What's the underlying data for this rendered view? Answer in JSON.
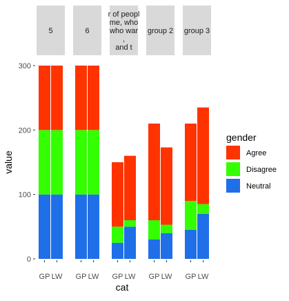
{
  "chart_data": {
    "type": "bar",
    "stacked": true,
    "faceted": true,
    "xlabel": "cat",
    "ylabel": "value",
    "ylim": [
      0,
      300
    ],
    "yticks": [
      0,
      100,
      200,
      300
    ],
    "categories": [
      "GP",
      "LW"
    ],
    "legend": {
      "title": "gender",
      "position": "right",
      "entries": [
        {
          "name": "Agree",
          "color": "#ff3300"
        },
        {
          "name": "Disagree",
          "color": "#33ff00"
        },
        {
          "name": "Neutral",
          "color": "#1f6fe8"
        }
      ]
    },
    "stack_order_bottom_to_top": [
      "Neutral",
      "Disagree",
      "Agree"
    ],
    "panels": [
      {
        "strip": [
          "5"
        ],
        "bars": [
          {
            "cat": "GP",
            "Neutral": 100,
            "Disagree": 100,
            "Agree": 100
          },
          {
            "cat": "LW",
            "Neutral": 100,
            "Disagree": 100,
            "Agree": 100
          }
        ]
      },
      {
        "strip": [
          "6"
        ],
        "bars": [
          {
            "cat": "GP",
            "Neutral": 100,
            "Disagree": 100,
            "Agree": 100
          },
          {
            "cat": "LW",
            "Neutral": 100,
            "Disagree": 100,
            "Agree": 100
          }
        ]
      },
      {
        "strip": [
          "r of peopl",
          "me, who",
          "who war",
          ",",
          "and t"
        ],
        "bars": [
          {
            "cat": "GP",
            "Neutral": 25,
            "Disagree": 25,
            "Agree": 100
          },
          {
            "cat": "LW",
            "Neutral": 50,
            "Disagree": 10,
            "Agree": 100
          }
        ]
      },
      {
        "strip": [
          "group 2"
        ],
        "bars": [
          {
            "cat": "GP",
            "Neutral": 30,
            "Disagree": 30,
            "Agree": 150
          },
          {
            "cat": "LW",
            "Neutral": 40,
            "Disagree": 13,
            "Agree": 120
          }
        ]
      },
      {
        "strip": [
          "group 3"
        ],
        "bars": [
          {
            "cat": "GP",
            "Neutral": 45,
            "Disagree": 45,
            "Agree": 120
          },
          {
            "cat": "LW",
            "Neutral": 70,
            "Disagree": 15,
            "Agree": 150
          }
        ]
      }
    ],
    "panel_background": "#ffffff",
    "strip_background": "#d9d9d9",
    "grid": false
  }
}
